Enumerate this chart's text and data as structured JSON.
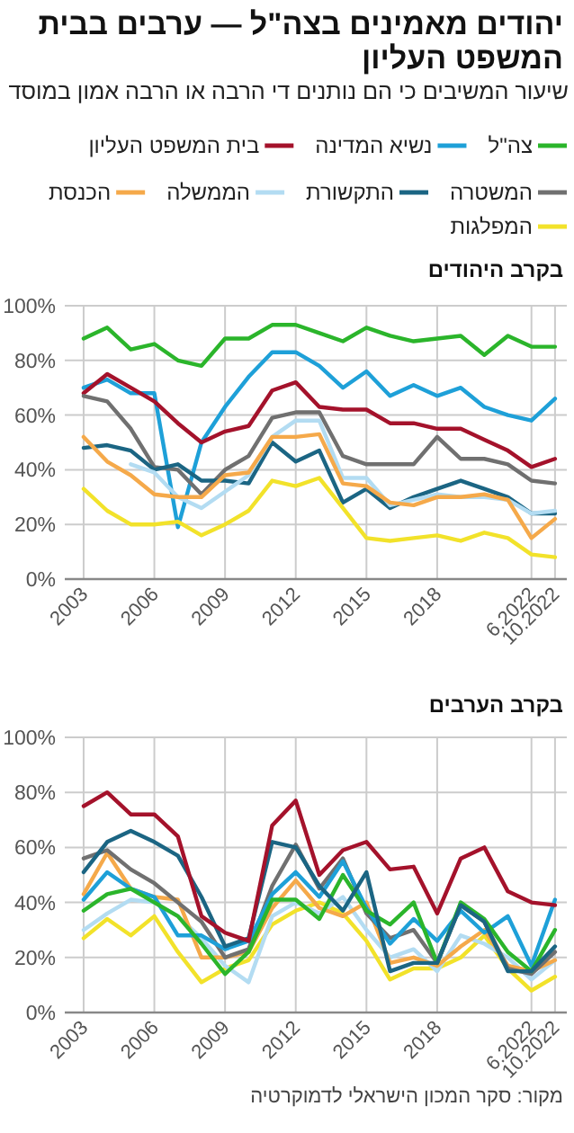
{
  "chart_data": [
    {
      "type": "line",
      "title": "יהודים מאמינים בצה\"ל — ערבים בבית המשפט העליון",
      "subtitle": "שיעור המשיבים כי הם נותנים די הרבה או הרבה אמון במוסד",
      "annotations": [
        "בקרב היהודים"
      ],
      "categories": [
        "2003",
        null,
        null,
        "2006",
        null,
        null,
        "2009",
        null,
        null,
        "2012",
        null,
        null,
        "2015",
        null,
        null,
        "2018",
        null,
        null,
        null,
        "6.2022",
        "10.2022"
      ],
      "ylim": [
        0,
        100
      ],
      "yticks": [
        {
          "value": 0,
          "label": "0%"
        },
        {
          "value": 20,
          "label": "20%"
        },
        {
          "value": 40,
          "label": "40%"
        },
        {
          "value": 60,
          "label": "60%"
        },
        {
          "value": 80,
          "label": "80%"
        },
        {
          "value": 100,
          "label": "100%"
        }
      ],
      "grid": true,
      "legend": "top",
      "series": [
        {
          "name": "צה\"ל",
          "color": "#2bb52b",
          "values": [
            88,
            92,
            84,
            86,
            80,
            78,
            88,
            88,
            93,
            93,
            90,
            87,
            92,
            89,
            87,
            88,
            89,
            82,
            89,
            85,
            85
          ]
        },
        {
          "name": "נשיא המדינה",
          "color": "#1ea0d8",
          "values": [
            70,
            73,
            68,
            68,
            19,
            50,
            63,
            74,
            83,
            83,
            78,
            70,
            76,
            67,
            71,
            67,
            70,
            63,
            60,
            58,
            66
          ]
        },
        {
          "name": "בית המשפט העליון",
          "color": "#a4122b",
          "values": [
            68,
            75,
            70,
            65,
            57,
            50,
            54,
            56,
            69,
            72,
            63,
            62,
            62,
            57,
            57,
            55,
            55,
            51,
            47,
            41,
            44
          ]
        },
        {
          "name": "המשטרה",
          "color": "#707070",
          "values": [
            67,
            65,
            55,
            41,
            40,
            31,
            40,
            45,
            59,
            61,
            61,
            45,
            42,
            42,
            42,
            52,
            44,
            44,
            42,
            36,
            35
          ]
        },
        {
          "name": "התקשורת",
          "color": "#1b6583",
          "values": [
            48,
            49,
            47,
            40,
            42,
            36,
            36,
            35,
            50,
            43,
            47,
            28,
            33,
            26,
            30,
            33,
            36,
            33,
            30,
            24,
            24
          ]
        },
        {
          "name": "הממשלה",
          "color": "#b3dcf2",
          "values": [
            null,
            null,
            42,
            39,
            30,
            26,
            32,
            38,
            52,
            58,
            58,
            37,
            37,
            27,
            29,
            31,
            30,
            30,
            29,
            24,
            25
          ]
        },
        {
          "name": "הכנסת",
          "color": "#f5a94a",
          "values": [
            52,
            43,
            38,
            31,
            30,
            30,
            38,
            39,
            52,
            52,
            53,
            35,
            34,
            28,
            27,
            30,
            30,
            31,
            29,
            15,
            22
          ]
        },
        {
          "name": "המפלגות",
          "color": "#f2e22a",
          "values": [
            33,
            25,
            20,
            20,
            21,
            16,
            20,
            25,
            36,
            34,
            37,
            26,
            15,
            14,
            15,
            16,
            14,
            17,
            15,
            9,
            8
          ]
        }
      ]
    },
    {
      "type": "line",
      "title": "בקרב הערבים",
      "annotations": [
        "מקור: סקר המכון הישראלי לדמוקרטיה"
      ],
      "categories": [
        "2003",
        null,
        null,
        "2006",
        null,
        null,
        "2009",
        null,
        null,
        "2012",
        null,
        null,
        "2015",
        null,
        null,
        "2018",
        null,
        null,
        null,
        "6.2022",
        "10.2022"
      ],
      "ylim": [
        0,
        100
      ],
      "yticks": [
        {
          "value": 0,
          "label": "0%"
        },
        {
          "value": 20,
          "label": "20%"
        },
        {
          "value": 40,
          "label": "40%"
        },
        {
          "value": 60,
          "label": "60%"
        },
        {
          "value": 80,
          "label": "80%"
        },
        {
          "value": 100,
          "label": "100%"
        }
      ],
      "grid": true,
      "series": [
        {
          "color": "#f2e22a",
          "values": [
            27,
            34,
            28,
            35,
            22,
            11,
            16,
            19,
            32,
            37,
            40,
            36,
            26,
            12,
            16,
            16,
            20,
            28,
            16,
            8,
            13
          ]
        },
        {
          "color": "#b3dcf2",
          "values": [
            30,
            36,
            41,
            40,
            35,
            27,
            17,
            11,
            35,
            40,
            36,
            42,
            30,
            20,
            23,
            15,
            28,
            25,
            20,
            12,
            19
          ]
        },
        {
          "color": "#f5a94a",
          "values": [
            43,
            58,
            45,
            42,
            41,
            20,
            20,
            22,
            38,
            48,
            38,
            35,
            40,
            18,
            20,
            17,
            24,
            30,
            17,
            15,
            19
          ]
        },
        {
          "color": "#707070",
          "values": [
            56,
            59,
            52,
            47,
            40,
            33,
            20,
            23,
            46,
            61,
            45,
            56,
            36,
            27,
            30,
            18,
            39,
            33,
            16,
            14,
            22
          ]
        },
        {
          "color": "#1ea0d8",
          "values": [
            41,
            51,
            45,
            42,
            28,
            28,
            23,
            26,
            43,
            51,
            42,
            55,
            38,
            25,
            34,
            26,
            37,
            29,
            35,
            17,
            41
          ]
        },
        {
          "color": "#2bb52b",
          "values": [
            37,
            43,
            45,
            40,
            35,
            25,
            14,
            22,
            41,
            41,
            34,
            50,
            37,
            32,
            40,
            18,
            40,
            34,
            22,
            15,
            30
          ]
        },
        {
          "color": "#1b6583",
          "values": [
            51,
            62,
            66,
            62,
            57,
            42,
            24,
            27,
            62,
            60,
            46,
            37,
            51,
            15,
            18,
            18,
            39,
            33,
            15,
            15,
            24
          ]
        },
        {
          "color": "#a4122b",
          "values": [
            75,
            80,
            72,
            72,
            64,
            35,
            29,
            26,
            68,
            77,
            50,
            59,
            62,
            52,
            53,
            36,
            56,
            60,
            44,
            40,
            39
          ]
        }
      ]
    }
  ]
}
